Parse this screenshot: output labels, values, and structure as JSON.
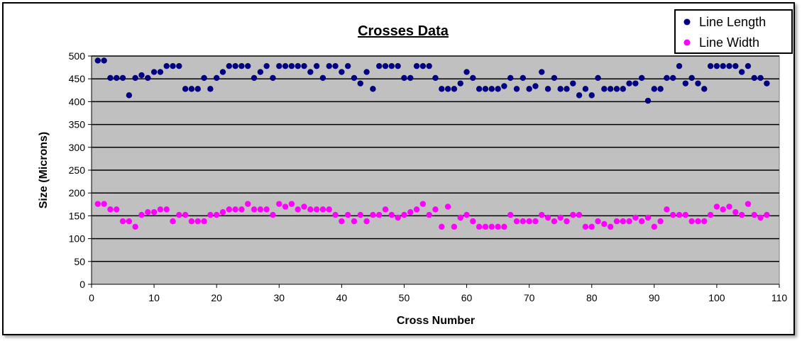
{
  "chart_data": {
    "type": "scatter",
    "title": "Crosses Data",
    "xlabel": "Cross Number",
    "ylabel": "Size (Microns)",
    "xlim": [
      0,
      110
    ],
    "ylim": [
      0,
      500
    ],
    "xticks": [
      0,
      10,
      20,
      30,
      40,
      50,
      60,
      70,
      80,
      90,
      100,
      110
    ],
    "yticks": [
      0,
      50,
      100,
      150,
      200,
      250,
      300,
      350,
      400,
      450,
      500
    ],
    "grid": "horizontal",
    "legend_position": "top-right",
    "plot_background": "#c0c0c0",
    "series": [
      {
        "name": "Line Length",
        "color": "#000080",
        "x": [
          1,
          2,
          3,
          4,
          5,
          6,
          7,
          8,
          9,
          10,
          11,
          12,
          13,
          14,
          15,
          16,
          17,
          18,
          19,
          20,
          21,
          22,
          23,
          24,
          25,
          26,
          27,
          28,
          29,
          30,
          31,
          32,
          33,
          34,
          35,
          36,
          37,
          38,
          39,
          40,
          41,
          42,
          43,
          44,
          45,
          46,
          47,
          48,
          49,
          50,
          51,
          52,
          53,
          54,
          55,
          56,
          57,
          58,
          59,
          60,
          61,
          62,
          63,
          64,
          65,
          66,
          67,
          68,
          69,
          70,
          71,
          72,
          73,
          74,
          75,
          76,
          77,
          78,
          79,
          80,
          81,
          82,
          83,
          84,
          85,
          86,
          87,
          88,
          89,
          90,
          91,
          92,
          93,
          94,
          95,
          96,
          97,
          98,
          99,
          100,
          101,
          102,
          103,
          104,
          105,
          106,
          107,
          108
        ],
        "y": [
          490,
          490,
          452,
          452,
          452,
          414,
          452,
          458,
          452,
          465,
          465,
          478,
          478,
          478,
          428,
          428,
          428,
          452,
          428,
          452,
          465,
          478,
          478,
          478,
          478,
          452,
          465,
          478,
          452,
          478,
          478,
          478,
          478,
          478,
          465,
          478,
          452,
          478,
          478,
          465,
          478,
          452,
          440,
          465,
          428,
          478,
          478,
          478,
          478,
          452,
          452,
          478,
          478,
          478,
          452,
          428,
          428,
          428,
          440,
          465,
          452,
          428,
          428,
          428,
          428,
          434,
          452,
          428,
          452,
          428,
          434,
          465,
          428,
          452,
          428,
          428,
          440,
          414,
          428,
          414,
          452,
          428,
          428,
          428,
          428,
          440,
          440,
          452,
          402,
          428,
          428,
          452,
          452,
          478,
          440,
          452,
          440,
          428,
          478,
          478,
          478,
          478,
          478,
          465,
          478,
          452,
          452,
          440
        ]
      },
      {
        "name": "Line Width",
        "color": "#ff00ff",
        "x": [
          1,
          2,
          3,
          4,
          5,
          6,
          7,
          8,
          9,
          10,
          11,
          12,
          13,
          14,
          15,
          16,
          17,
          18,
          19,
          20,
          21,
          22,
          23,
          24,
          25,
          26,
          27,
          28,
          29,
          30,
          31,
          32,
          33,
          34,
          35,
          36,
          37,
          38,
          39,
          40,
          41,
          42,
          43,
          44,
          45,
          46,
          47,
          48,
          49,
          50,
          51,
          52,
          53,
          54,
          55,
          56,
          57,
          58,
          59,
          60,
          61,
          62,
          63,
          64,
          65,
          66,
          67,
          68,
          69,
          70,
          71,
          72,
          73,
          74,
          75,
          76,
          77,
          78,
          79,
          80,
          81,
          82,
          83,
          84,
          85,
          86,
          87,
          88,
          89,
          90,
          91,
          92,
          93,
          94,
          95,
          96,
          97,
          98,
          99,
          100,
          101,
          102,
          103,
          104,
          105,
          106,
          107,
          108
        ],
        "y": [
          176,
          176,
          164,
          164,
          138,
          138,
          126,
          152,
          158,
          158,
          164,
          164,
          138,
          152,
          152,
          138,
          138,
          138,
          152,
          152,
          158,
          164,
          164,
          164,
          176,
          164,
          164,
          164,
          152,
          176,
          170,
          176,
          164,
          170,
          164,
          164,
          164,
          164,
          152,
          138,
          152,
          138,
          152,
          138,
          152,
          152,
          164,
          152,
          146,
          152,
          158,
          164,
          176,
          152,
          164,
          126,
          170,
          126,
          146,
          152,
          138,
          126,
          126,
          126,
          126,
          126,
          152,
          138,
          138,
          138,
          138,
          152,
          146,
          138,
          146,
          138,
          152,
          152,
          126,
          126,
          138,
          132,
          126,
          138,
          138,
          138,
          146,
          138,
          146,
          126,
          138,
          164,
          152,
          152,
          152,
          138,
          138,
          138,
          152,
          170,
          164,
          170,
          158,
          152,
          176,
          152,
          146,
          152
        ]
      }
    ]
  }
}
